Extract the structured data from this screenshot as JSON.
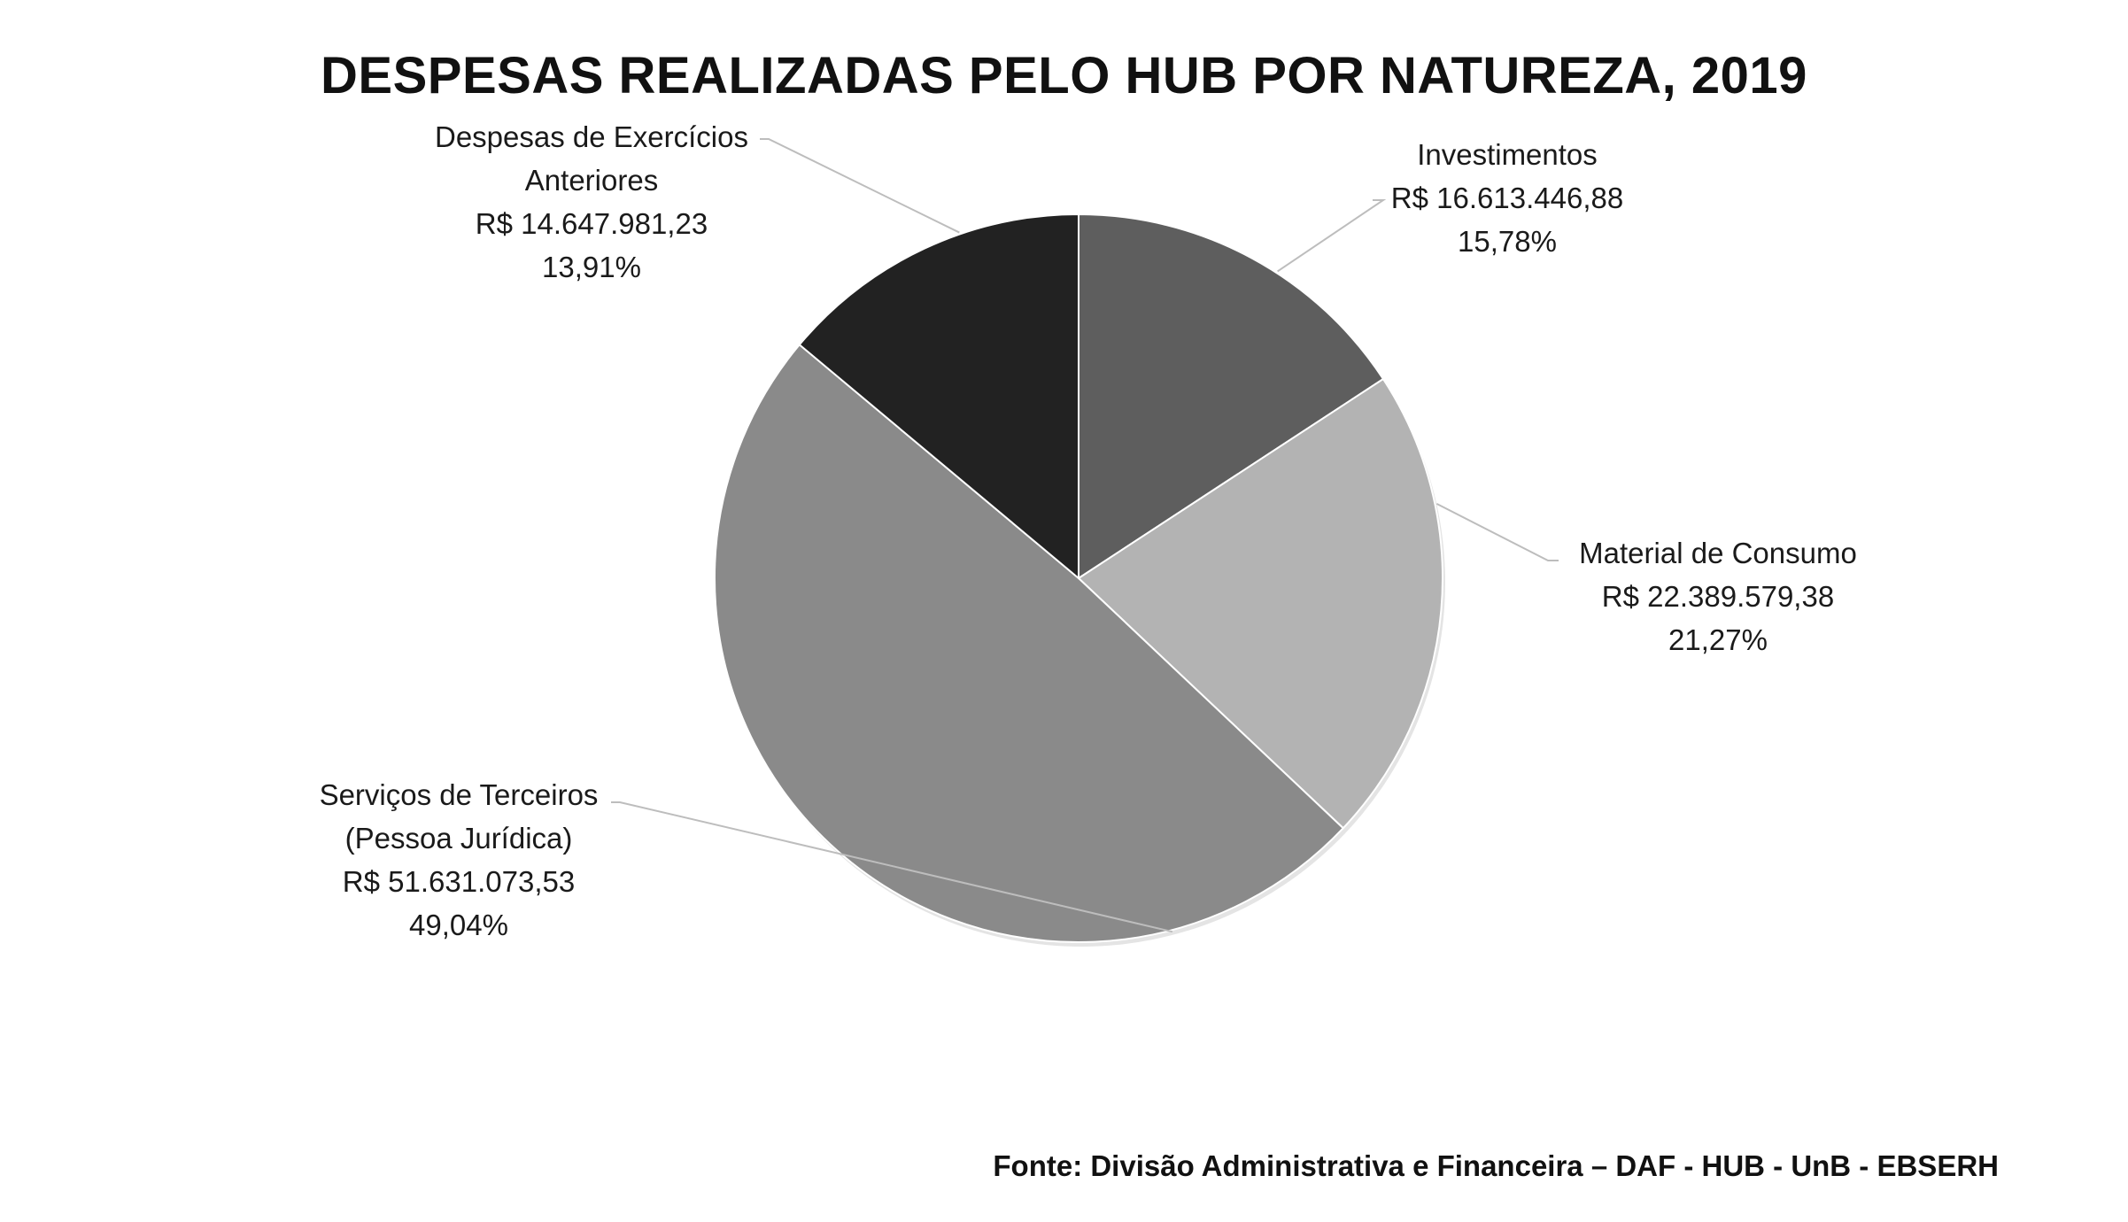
{
  "chart_data": {
    "type": "pie",
    "title": "DESPESAS REALIZADAS PELO HUB POR NATUREZA, 2019",
    "slices": [
      {
        "key": "investimentos",
        "label_lines": [
          "Investimentos"
        ],
        "value_text": "R$ 16.613.446,88",
        "value": 16613446.88,
        "percent_text": "15,78%",
        "percent": 15.78,
        "color": "#5e5e5e"
      },
      {
        "key": "material",
        "label_lines": [
          "Material de Consumo"
        ],
        "value_text": "R$ 22.389.579,38",
        "value": 22389579.38,
        "percent_text": "21,27%",
        "percent": 21.27,
        "color": "#b3b3b3"
      },
      {
        "key": "servicos",
        "label_lines": [
          "Serviços de Terceiros",
          "(Pessoa Jurídica)"
        ],
        "value_text": "R$ 51.631.073,53",
        "value": 51631073.53,
        "percent_text": "49,04%",
        "percent": 49.04,
        "color": "#8a8a8a"
      },
      {
        "key": "exercicios",
        "label_lines": [
          "Despesas de Exercícios",
          "Anteriores"
        ],
        "value_text": "R$ 14.647.981,23",
        "value": 14647981.23,
        "percent_text": "13,91%",
        "percent": 13.91,
        "color": "#222222"
      }
    ],
    "start_angle": "12 o'clock",
    "direction": "clockwise",
    "legend": "none",
    "data_labels": "outside with leader lines"
  },
  "source": "Fonte: Divisão Administrativa e Financeira – DAF - HUB - UnB - EBSERH"
}
